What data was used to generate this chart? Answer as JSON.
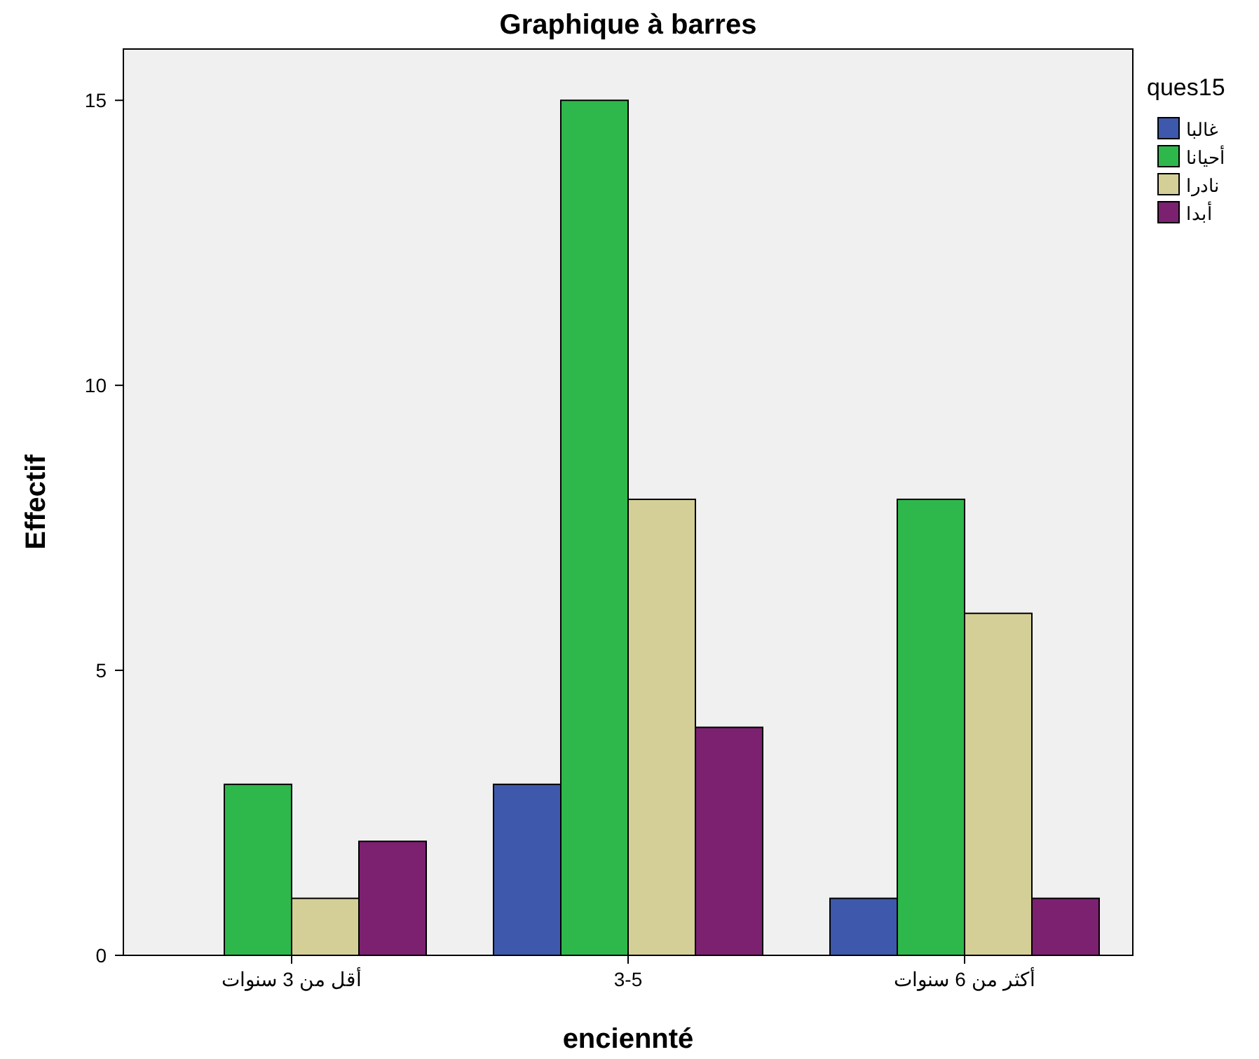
{
  "chart_data": {
    "type": "bar",
    "title": "Graphique à barres",
    "xlabel": "enciennté",
    "ylabel": "Effectif",
    "legend_title": "ques15",
    "legend": "right",
    "categories": [
      "أقل من 3 سنوات",
      "3-5",
      "أكثر من 6 سنوات"
    ],
    "series": [
      {
        "name": "غالبا",
        "color": "#3e58ac",
        "values": [
          0,
          3,
          1
        ]
      },
      {
        "name": "أحيانا",
        "color": "#2eb84b",
        "values": [
          3,
          15,
          8
        ]
      },
      {
        "name": "نادرا",
        "color": "#d4cf96",
        "values": [
          1,
          8,
          6
        ]
      },
      {
        "name": "أبدا",
        "color": "#7b2170",
        "values": [
          2,
          4,
          1
        ]
      }
    ],
    "ylim": [
      0,
      15.9
    ],
    "yticks": [
      0,
      5,
      10,
      15
    ],
    "grid": false
  }
}
